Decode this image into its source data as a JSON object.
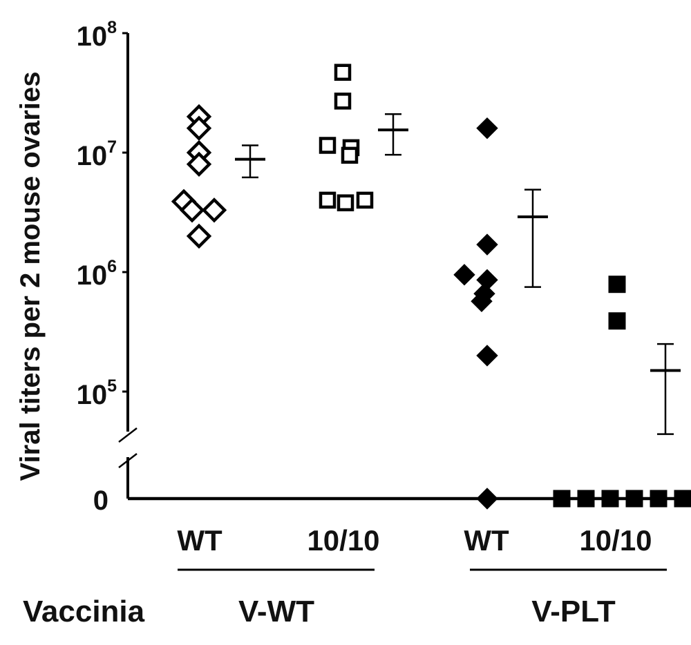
{
  "chart_data": {
    "type": "scatter",
    "ylabel": "Viral titers per 2 mouse ovaries",
    "yscale": "log",
    "ylim": [
      40000,
      100000000
    ],
    "yticks": [
      {
        "value": 100000000,
        "base": "10",
        "exp": "8"
      },
      {
        "value": 10000000,
        "base": "10",
        "exp": "7"
      },
      {
        "value": 1000000,
        "base": "10",
        "exp": "6"
      },
      {
        "value": 100000,
        "base": "10",
        "exp": "5"
      }
    ],
    "zero_label": "0",
    "axis_break": true,
    "row_label": "Vaccinia",
    "groups": [
      {
        "label": "V-WT",
        "categories": [
          "WT",
          "10/10"
        ]
      },
      {
        "label": "V-PLT",
        "categories": [
          "WT",
          "10/10"
        ]
      }
    ],
    "series": [
      {
        "category": "WT",
        "group": "V-WT",
        "marker": "diamond",
        "filled": false,
        "points": [
          20000000,
          16000000,
          10000000,
          8000000,
          3900000,
          3300000,
          3300000,
          2000000
        ],
        "mean": 8800000,
        "err_high": 11500000,
        "err_low": 6200000
      },
      {
        "category": "10/10",
        "group": "V-WT",
        "marker": "square",
        "filled": false,
        "points": [
          47000000,
          27000000,
          11500000,
          11000000,
          9500000,
          4000000,
          3800000,
          4000000
        ],
        "mean": 15500000,
        "err_high": 21000000,
        "err_low": 9600000
      },
      {
        "category": "WT",
        "group": "V-PLT",
        "marker": "diamond",
        "filled": true,
        "points": [
          16000000,
          1700000,
          950000,
          860000,
          660000,
          570000,
          200000,
          0
        ],
        "mean": 2900000,
        "err_high": 4900000,
        "err_low": 750000
      },
      {
        "category": "10/10",
        "group": "V-PLT",
        "marker": "square",
        "filled": true,
        "points": [
          790000,
          390000,
          0,
          0,
          0,
          0,
          0,
          0
        ],
        "mean": 150000,
        "err_high": 250000,
        "err_low": 44000
      }
    ]
  }
}
